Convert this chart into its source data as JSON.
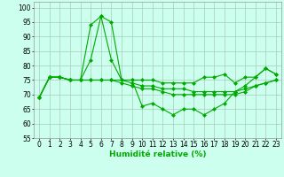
{
  "x": [
    0,
    1,
    2,
    3,
    4,
    5,
    6,
    7,
    8,
    9,
    10,
    11,
    12,
    13,
    14,
    15,
    16,
    17,
    18,
    19,
    20,
    21,
    22,
    23
  ],
  "series": [
    [
      69,
      76,
      76,
      75,
      75,
      94,
      97,
      95,
      75,
      75,
      75,
      75,
      74,
      74,
      74,
      74,
      76,
      76,
      77,
      74,
      76,
      76,
      79,
      77
    ],
    [
      69,
      76,
      76,
      75,
      75,
      82,
      97,
      82,
      75,
      75,
      66,
      67,
      65,
      63,
      65,
      65,
      63,
      65,
      67,
      71,
      73,
      76,
      79,
      77
    ],
    [
      69,
      76,
      76,
      75,
      75,
      75,
      75,
      75,
      75,
      74,
      73,
      73,
      72,
      72,
      72,
      71,
      71,
      71,
      71,
      71,
      72,
      73,
      74,
      75
    ],
    [
      69,
      76,
      76,
      75,
      75,
      75,
      75,
      75,
      74,
      73,
      72,
      72,
      71,
      70,
      70,
      70,
      70,
      70,
      70,
      70,
      71,
      73,
      74,
      75
    ]
  ],
  "line_color": "#00aa00",
  "background_color": "#ccffee",
  "grid_color": "#aaccbb",
  "xlabel": "Humidité relative (%)",
  "ylim": [
    55,
    102
  ],
  "xlim": [
    -0.5,
    23.5
  ],
  "yticks": [
    55,
    60,
    65,
    70,
    75,
    80,
    85,
    90,
    95,
    100
  ],
  "xticks": [
    0,
    1,
    2,
    3,
    4,
    5,
    6,
    7,
    8,
    9,
    10,
    11,
    12,
    13,
    14,
    15,
    16,
    17,
    18,
    19,
    20,
    21,
    22,
    23
  ],
  "marker": "D",
  "marker_size": 2.0,
  "line_width": 0.8,
  "tick_fontsize": 5.5,
  "xlabel_fontsize": 6.5
}
